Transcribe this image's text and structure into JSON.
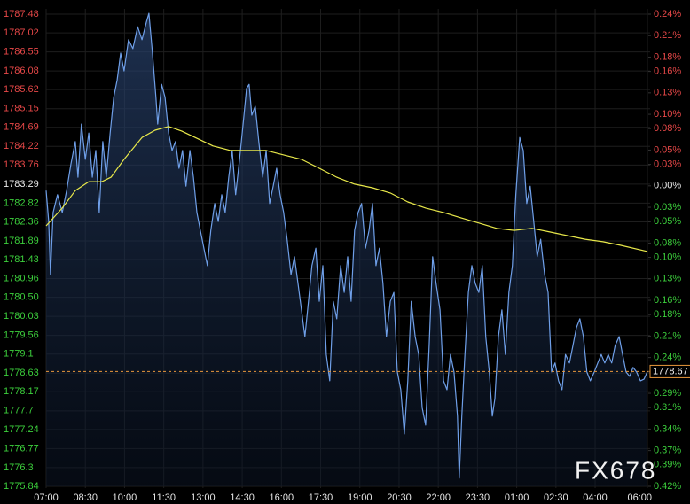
{
  "chart_data": {
    "type": "line",
    "xlim": [
      0,
      1380
    ],
    "xticks": [
      {
        "value": 0,
        "label": "07:00"
      },
      {
        "value": 90,
        "label": "08:30"
      },
      {
        "value": 180,
        "label": "10:00"
      },
      {
        "value": 270,
        "label": "11:30"
      },
      {
        "value": 360,
        "label": "13:00"
      },
      {
        "value": 450,
        "label": "14:30"
      },
      {
        "value": 540,
        "label": "16:00"
      },
      {
        "value": 630,
        "label": "17:30"
      },
      {
        "value": 720,
        "label": "19:00"
      },
      {
        "value": 810,
        "label": "20:30"
      },
      {
        "value": 900,
        "label": "22:00"
      },
      {
        "value": 990,
        "label": "23:30"
      },
      {
        "value": 1080,
        "label": "01:00"
      },
      {
        "value": 1170,
        "label": "02:30"
      },
      {
        "value": 1260,
        "label": "04:00"
      },
      {
        "value": 1380,
        "label": "06:00"
      }
    ],
    "ylim": [
      1775.84,
      1787.48
    ],
    "yticks": [
      1787.48,
      1787.02,
      1786.55,
      1786.08,
      1785.62,
      1785.15,
      1784.69,
      1784.22,
      1783.76,
      1783.29,
      1782.82,
      1782.36,
      1781.89,
      1781.43,
      1780.96,
      {
        "value": 1780.5,
        "label": "1780.50"
      },
      1780.03,
      1779.56,
      1779.1,
      1778.63,
      1778.17,
      1777.7,
      1777.24,
      1776.77,
      1776.3,
      1775.84
    ],
    "base": 1783.29,
    "y2lim": [
      -0.42,
      0.24
    ],
    "y2ticks": [
      {
        "value": 0.24,
        "label": "0.24%"
      },
      {
        "value": 0.21,
        "label": "0.21%"
      },
      {
        "value": 0.18,
        "label": "0.18%"
      },
      {
        "value": 0.16,
        "label": "0.16%"
      },
      {
        "value": 0.13,
        "label": "0.13%"
      },
      {
        "value": 0.1,
        "label": "0.10%"
      },
      {
        "value": 0.08,
        "label": "0.08%"
      },
      {
        "value": 0.05,
        "label": "0.05%"
      },
      {
        "value": 0.03,
        "label": "0.03%"
      },
      {
        "value": 0,
        "label": "0.00%"
      },
      {
        "value": -0.03,
        "label": "0.03%"
      },
      {
        "value": -0.05,
        "label": "0.05%"
      },
      {
        "value": -0.08,
        "label": "0.08%"
      },
      {
        "value": -0.1,
        "label": "0.10%"
      },
      {
        "value": -0.13,
        "label": "0.13%"
      },
      {
        "value": -0.16,
        "label": "0.16%"
      },
      {
        "value": -0.18,
        "label": "0.18%"
      },
      {
        "value": -0.21,
        "label": "0.21%"
      },
      {
        "value": -0.24,
        "label": "0.24%"
      },
      {
        "value": -0.26,
        "label": "0.26%"
      },
      {
        "value": -0.29,
        "label": "0.29%"
      },
      {
        "value": -0.31,
        "label": "0.31%"
      },
      {
        "value": -0.34,
        "label": "0.34%"
      },
      {
        "value": -0.37,
        "label": "0.37%"
      },
      {
        "value": -0.39,
        "label": "0.39%"
      },
      {
        "value": -0.42,
        "label": "0.42%"
      }
    ],
    "up_color": "#e84848",
    "down_color": "#3ccf3c",
    "flat_color": "#e8e8e8",
    "grid": true,
    "series": [
      {
        "color": "#6f9fe8",
        "area": true,
        "x": [
          0,
          6,
          10,
          16,
          26,
          37,
          47,
          57,
          67,
          73,
          81,
          90,
          98,
          106,
          114,
          122,
          130,
          138,
          147,
          155,
          163,
          171,
          179,
          189,
          199,
          210,
          220,
          230,
          236,
          244,
          252,
          256,
          265,
          273,
          281,
          289,
          297,
          305,
          313,
          321,
          330,
          338,
          346,
          354,
          362,
          370,
          378,
          387,
          395,
          403,
          411,
          419,
          427,
          435,
          444,
          452,
          460,
          466,
          472,
          480,
          488,
          497,
          505,
          513,
          521,
          529,
          537,
          545,
          553,
          562,
          570,
          578,
          586,
          594,
          602,
          610,
          619,
          627,
          635,
          643,
          651,
          659,
          667,
          676,
          684,
          692,
          700,
          708,
          716,
          724,
          733,
          741,
          749,
          757,
          765,
          773,
          781,
          790,
          798,
          806,
          814,
          822,
          830,
          838,
          847,
          855,
          863,
          871,
          879,
          887,
          895,
          904,
          912,
          920,
          928,
          936,
          944,
          948,
          954,
          960,
          969,
          977,
          985,
          993,
          1001,
          1009,
          1017,
          1024,
          1030,
          1038,
          1046,
          1054,
          1062,
          1070,
          1078,
          1087,
          1095,
          1103,
          1111,
          1119,
          1127,
          1135,
          1144,
          1152,
          1160,
          1168,
          1176,
          1184,
          1192,
          1201,
          1209,
          1217,
          1225,
          1233,
          1241,
          1249,
          1258,
          1266,
          1274,
          1282,
          1290,
          1298,
          1306,
          1315,
          1323,
          1331,
          1339,
          1347,
          1355,
          1364,
          1372,
          1380
        ],
        "values": [
          1783.13,
          1782.37,
          1781.06,
          1782.59,
          1783.03,
          1782.59,
          1783.13,
          1783.79,
          1784.34,
          1783.46,
          1784.77,
          1783.9,
          1784.55,
          1783.46,
          1784.12,
          1782.59,
          1784.34,
          1783.46,
          1784.55,
          1785.43,
          1785.86,
          1786.52,
          1786.08,
          1786.85,
          1786.63,
          1787.17,
          1786.85,
          1787.28,
          1787.5,
          1786.52,
          1785.43,
          1784.77,
          1785.75,
          1785.43,
          1784.55,
          1784.12,
          1784.34,
          1783.68,
          1784.12,
          1783.24,
          1784.12,
          1783.46,
          1782.59,
          1782.15,
          1781.71,
          1781.28,
          1782.15,
          1782.81,
          1782.37,
          1783.03,
          1782.59,
          1783.46,
          1784.12,
          1783.03,
          1783.9,
          1784.77,
          1785.65,
          1785.75,
          1784.99,
          1785.21,
          1784.34,
          1783.46,
          1784.12,
          1782.81,
          1783.24,
          1783.68,
          1783.03,
          1782.59,
          1781.93,
          1781.06,
          1781.5,
          1780.84,
          1780.19,
          1779.53,
          1780.4,
          1781.28,
          1781.71,
          1780.4,
          1781.28,
          1779.09,
          1778.44,
          1780.4,
          1779.97,
          1781.28,
          1780.62,
          1781.5,
          1780.4,
          1782.15,
          1782.59,
          1782.81,
          1781.71,
          1782.15,
          1782.81,
          1781.28,
          1781.71,
          1780.84,
          1779.53,
          1780.4,
          1780.62,
          1778.66,
          1778.22,
          1777.13,
          1778.44,
          1780.4,
          1779.53,
          1779.09,
          1777.78,
          1777.35,
          1779.31,
          1781.5,
          1780.84,
          1780.19,
          1778.44,
          1778.22,
          1779.09,
          1778.66,
          1777.57,
          1776.04,
          1777.57,
          1778.88,
          1780.62,
          1781.28,
          1780.84,
          1780.62,
          1781.28,
          1779.53,
          1778.66,
          1777.57,
          1778.0,
          1779.53,
          1780.19,
          1779.09,
          1780.62,
          1781.28,
          1783.03,
          1784.44,
          1784.12,
          1782.81,
          1783.24,
          1782.37,
          1781.5,
          1781.93,
          1781.06,
          1780.62,
          1778.66,
          1778.88,
          1778.44,
          1778.22,
          1779.09,
          1778.88,
          1779.31,
          1779.75,
          1779.97,
          1779.53,
          1778.66,
          1778.44,
          1778.66,
          1778.88,
          1779.09,
          1778.88,
          1779.09,
          1778.88,
          1779.31,
          1779.53,
          1779.09,
          1778.66,
          1778.55,
          1778.77,
          1778.66,
          1778.44,
          1778.48,
          1778.67
        ]
      },
      {
        "color": "#e8e84a",
        "area": false,
        "x": [
          0,
          37,
          67,
          98,
          128,
          149,
          179,
          220,
          250,
          281,
          311,
          342,
          383,
          423,
          464,
          505,
          545,
          586,
          627,
          667,
          708,
          749,
          790,
          830,
          871,
          912,
          952,
          993,
          1034,
          1074,
          1115,
          1156,
          1196,
          1237,
          1278,
          1319,
          1380
        ],
        "values": [
          1782.26,
          1782.7,
          1783.13,
          1783.35,
          1783.35,
          1783.46,
          1783.9,
          1784.44,
          1784.62,
          1784.71,
          1784.6,
          1784.44,
          1784.23,
          1784.12,
          1784.12,
          1784.12,
          1784.01,
          1783.9,
          1783.68,
          1783.46,
          1783.29,
          1783.2,
          1783.07,
          1782.85,
          1782.7,
          1782.59,
          1782.46,
          1782.33,
          1782.2,
          1782.15,
          1782.2,
          1782.11,
          1782.02,
          1781.93,
          1781.87,
          1781.78,
          1781.63
        ]
      }
    ],
    "last_price": {
      "value": 1778.67,
      "color": "#e8983c"
    },
    "watermark": "FX678"
  }
}
